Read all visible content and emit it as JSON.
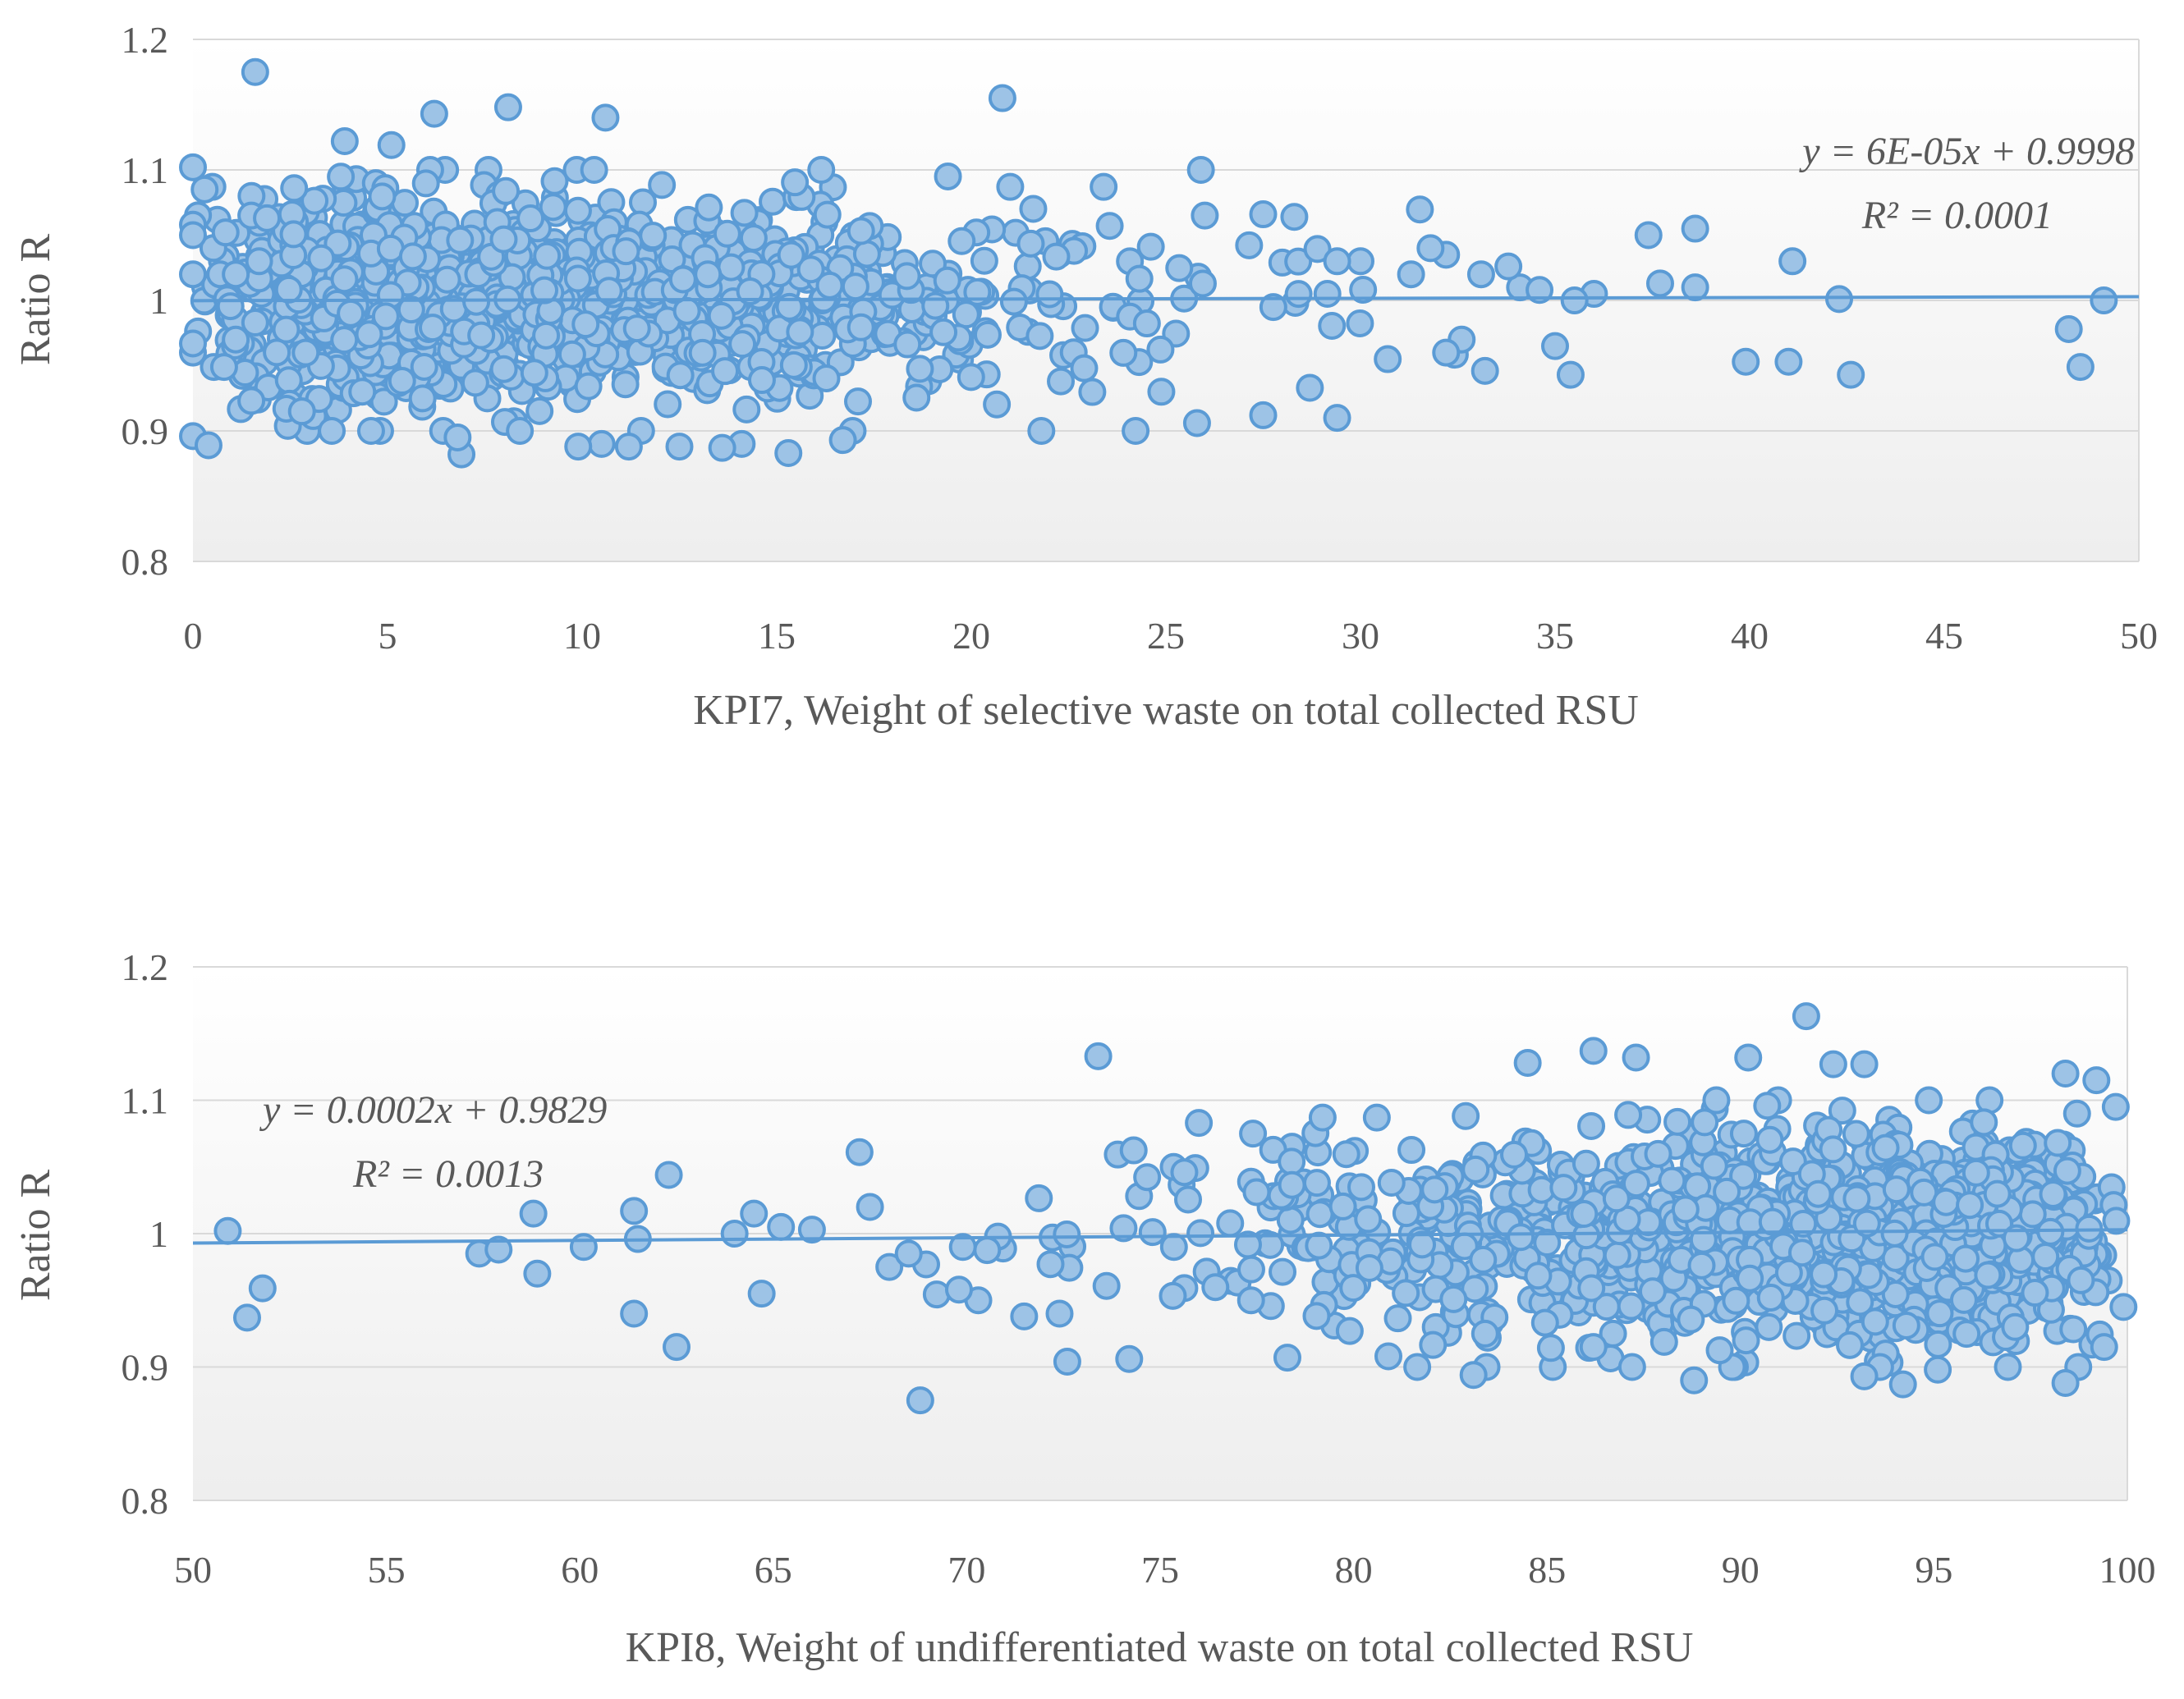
{
  "chart_data": [
    {
      "type": "scatter",
      "title": "",
      "xlabel": "KPI7, Weight of selective waste on total collected RSU",
      "ylabel": "Ratio R",
      "xlim": [
        0,
        50
      ],
      "ylim": [
        0.8,
        1.2
      ],
      "xticks": [
        "0",
        "5",
        "10",
        "15",
        "20",
        "25",
        "30",
        "35",
        "40",
        "45",
        "50"
      ],
      "yticks": [
        "0.8",
        "0.9",
        "1",
        "1.1",
        "1.2"
      ],
      "xtick_values": [
        0,
        5,
        10,
        15,
        20,
        25,
        30,
        35,
        40,
        45,
        50
      ],
      "ytick_values": [
        0.8,
        0.9,
        1.0,
        1.1,
        1.2
      ],
      "grid": "horizontal",
      "trendline": {
        "slope": 6e-05,
        "intercept": 0.9998
      },
      "equation": "y = 6E-05x + 0.9998",
      "r_squared": "R² = 0.0001",
      "cluster": {
        "description_count": 1400,
        "xmin": 0,
        "xmax": 33,
        "center": 1.0
      },
      "series": [
        {
          "name": "KPI7",
          "outliers": [
            [
              1.6,
              1.175
            ],
            [
              20.8,
              1.155
            ],
            [
              8.1,
              1.148
            ],
            [
              6.2,
              1.143
            ],
            [
              10.6,
              1.14
            ],
            [
              3.9,
              1.122
            ],
            [
              5.1,
              1.119
            ],
            [
              0,
              1.102
            ],
            [
              25.9,
              1.1
            ],
            [
              0.5,
              1.087
            ],
            [
              0.3,
              1.085
            ],
            [
              21,
              1.087
            ],
            [
              23.4,
              1.087
            ],
            [
              2.6,
              1.086
            ],
            [
              19.4,
              1.095
            ],
            [
              1.5,
              1.065
            ],
            [
              1.9,
              1.063
            ],
            [
              27.5,
              1.066
            ],
            [
              28.3,
              1.064
            ],
            [
              26,
              1.065
            ],
            [
              37.4,
              1.05
            ],
            [
              38.6,
              1.055
            ],
            [
              41.1,
              1.03
            ],
            [
              0,
              1.058
            ],
            [
              0,
              1.05
            ],
            [
              0,
              1.02
            ],
            [
              0.7,
              1.02
            ],
            [
              1.1,
              1.02
            ],
            [
              1.7,
              1.03
            ],
            [
              37.7,
              1.013
            ],
            [
              38.6,
              1.01
            ],
            [
              42.3,
              1.001
            ],
            [
              49.1,
              1.0
            ],
            [
              36,
              1.005
            ],
            [
              35.5,
              1.0
            ],
            [
              34.1,
              1.01
            ],
            [
              34.6,
              1.008
            ],
            [
              33.8,
              1.026
            ],
            [
              33.1,
              1.02
            ],
            [
              32.2,
              1.035
            ],
            [
              31.8,
              1.04
            ],
            [
              30,
              1.03
            ],
            [
              29.4,
              1.03
            ],
            [
              31.3,
              1.02
            ],
            [
              35,
              0.965
            ],
            [
              35.4,
              0.943
            ],
            [
              33.2,
              0.946
            ],
            [
              32.6,
              0.97
            ],
            [
              32.2,
              0.96
            ],
            [
              30.7,
              0.955
            ],
            [
              39.9,
              0.953
            ],
            [
              41,
              0.953
            ],
            [
              42.6,
              0.943
            ],
            [
              48.2,
              0.978
            ],
            [
              48.5,
              0.949
            ],
            [
              29.4,
              0.91
            ],
            [
              27.5,
              0.912
            ],
            [
              28.7,
              0.933
            ],
            [
              25.8,
              0.906
            ],
            [
              21.8,
              0.9
            ],
            [
              16.7,
              0.893
            ],
            [
              15.3,
              0.883
            ],
            [
              14.1,
              0.89
            ],
            [
              13.6,
              0.887
            ],
            [
              12.5,
              0.888
            ],
            [
              11.2,
              0.888
            ],
            [
              10.5,
              0.89
            ],
            [
              9.9,
              0.888
            ],
            [
              6.9,
              0.882
            ],
            [
              6.8,
              0.895
            ],
            [
              8.4,
              0.9
            ],
            [
              0,
              0.896
            ],
            [
              0.4,
              0.889
            ],
            [
              1.5,
              0.923
            ],
            [
              2.4,
              0.917
            ],
            [
              2.8,
              0.915
            ],
            [
              0.8,
              0.949
            ],
            [
              1.1,
              0.97
            ],
            [
              1.6,
              0.983
            ],
            [
              0,
              0.96
            ],
            [
              0,
              0.967
            ],
            [
              22.3,
              0.938
            ],
            [
              22.9,
              0.948
            ]
          ]
        }
      ]
    },
    {
      "type": "scatter",
      "title": "",
      "xlabel": "KPI8, Weight of undifferentiated  waste on total collected RSU",
      "ylabel": "Ratio R",
      "xlim": [
        50,
        100
      ],
      "ylim": [
        0.8,
        1.2
      ],
      "xticks": [
        "50",
        "55",
        "60",
        "65",
        "70",
        "75",
        "80",
        "85",
        "90",
        "95",
        "100"
      ],
      "yticks": [
        "0.8",
        "0.9",
        "1",
        "1.1",
        "1.2"
      ],
      "xtick_values": [
        50,
        55,
        60,
        65,
        70,
        75,
        80,
        85,
        90,
        95,
        100
      ],
      "ytick_values": [
        0.8,
        0.9,
        1.0,
        1.1,
        1.2
      ],
      "grid": "horizontal",
      "trendline": {
        "slope": 0.0002,
        "intercept": 0.9829
      },
      "equation": "y = 0.0002x + 0.9829",
      "r_squared": "R² = 0.0013",
      "cluster": {
        "description_count": 1400,
        "xmin": 67,
        "xmax": 100,
        "center": 1.0
      },
      "series": [
        {
          "name": "KPI8",
          "outliers": [
            [
              91.7,
              1.163
            ],
            [
              73.4,
              1.133
            ],
            [
              86.2,
              1.137
            ],
            [
              87.3,
              1.132
            ],
            [
              84.5,
              1.128
            ],
            [
              98.4,
              1.12
            ],
            [
              99.2,
              1.115
            ],
            [
              90.2,
              1.132
            ],
            [
              92.4,
              1.127
            ],
            [
              93.2,
              1.127
            ],
            [
              79.2,
              1.087
            ],
            [
              76,
              1.083
            ],
            [
              80.6,
              1.087
            ],
            [
              77.4,
              1.075
            ],
            [
              50.9,
              1.002
            ],
            [
              51.4,
              0.937
            ],
            [
              51.8,
              0.959
            ],
            [
              57.4,
              0.985
            ],
            [
              57.9,
              0.988
            ],
            [
              58.8,
              1.015
            ],
            [
              58.9,
              0.97
            ],
            [
              60.1,
              0.99
            ],
            [
              61.4,
              1.017
            ],
            [
              61.5,
              0.996
            ],
            [
              61.4,
              0.94
            ],
            [
              62.3,
              1.044
            ],
            [
              62.5,
              0.915
            ],
            [
              64,
              1.0
            ],
            [
              64.5,
              1.015
            ],
            [
              64.7,
              0.955
            ],
            [
              65.2,
              1.005
            ],
            [
              66,
              1.003
            ],
            [
              68.8,
              0.875
            ],
            [
              72.6,
              0.904
            ],
            [
              74.2,
              0.906
            ],
            [
              83.1,
              0.894
            ],
            [
              87.2,
              0.9
            ],
            [
              88.8,
              0.89
            ],
            [
              93.2,
              0.893
            ],
            [
              94.2,
              0.887
            ],
            [
              95.1,
              0.898
            ],
            [
              98.4,
              0.888
            ],
            [
              99.4,
              0.915
            ],
            [
              79.9,
              0.927
            ],
            [
              83.4,
              0.925
            ],
            [
              86.2,
              0.915
            ],
            [
              80.9,
              0.908
            ],
            [
              72.4,
              0.94
            ],
            [
              70.3,
              0.95
            ],
            [
              69.8,
              0.958
            ],
            [
              68,
              0.975
            ],
            [
              68.5,
              0.985
            ],
            [
              67.5,
              1.02
            ],
            [
              69.9,
              0.99
            ],
            [
              97.3,
              1.066
            ],
            [
              98.7,
              1.09
            ],
            [
              99.7,
              1.095
            ],
            [
              98.2,
              1.068
            ],
            [
              97.1,
              0.93
            ],
            [
              98.8,
              0.965
            ],
            [
              99.9,
              0.945
            ]
          ]
        }
      ]
    }
  ]
}
